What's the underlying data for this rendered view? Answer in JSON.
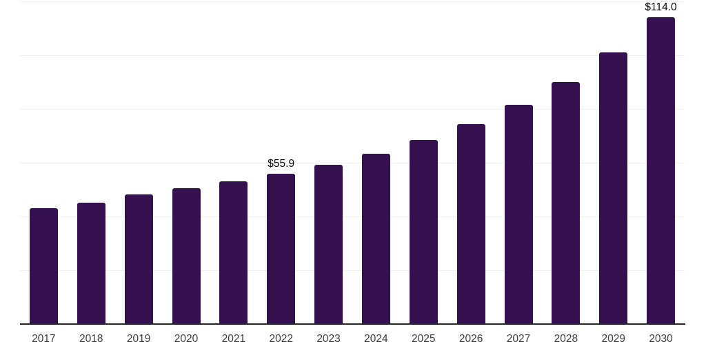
{
  "chart_data": {
    "type": "bar",
    "title": "",
    "xlabel": "",
    "ylabel": "",
    "categories": [
      "2017",
      "2018",
      "2019",
      "2020",
      "2021",
      "2022",
      "2023",
      "2024",
      "2025",
      "2026",
      "2027",
      "2028",
      "2029",
      "2030"
    ],
    "values": [
      43.0,
      45.2,
      48.1,
      50.4,
      52.9,
      55.9,
      59.2,
      63.3,
      68.5,
      74.4,
      81.4,
      89.9,
      100.9,
      114.0
    ],
    "data_labels": {
      "2022": "$55.9",
      "2030": "$114.0"
    },
    "ylim": [
      0,
      120
    ],
    "grid_step": 20,
    "grid": true,
    "legend": "none",
    "y_tick_labels_visible": false,
    "colors": {
      "bar": "#36114F",
      "gridline": "#f1f1f1",
      "axis": "#262626",
      "tick_label": "#3d3d3d",
      "value_label": "#0a0a0a",
      "background": "#ffffff"
    }
  }
}
